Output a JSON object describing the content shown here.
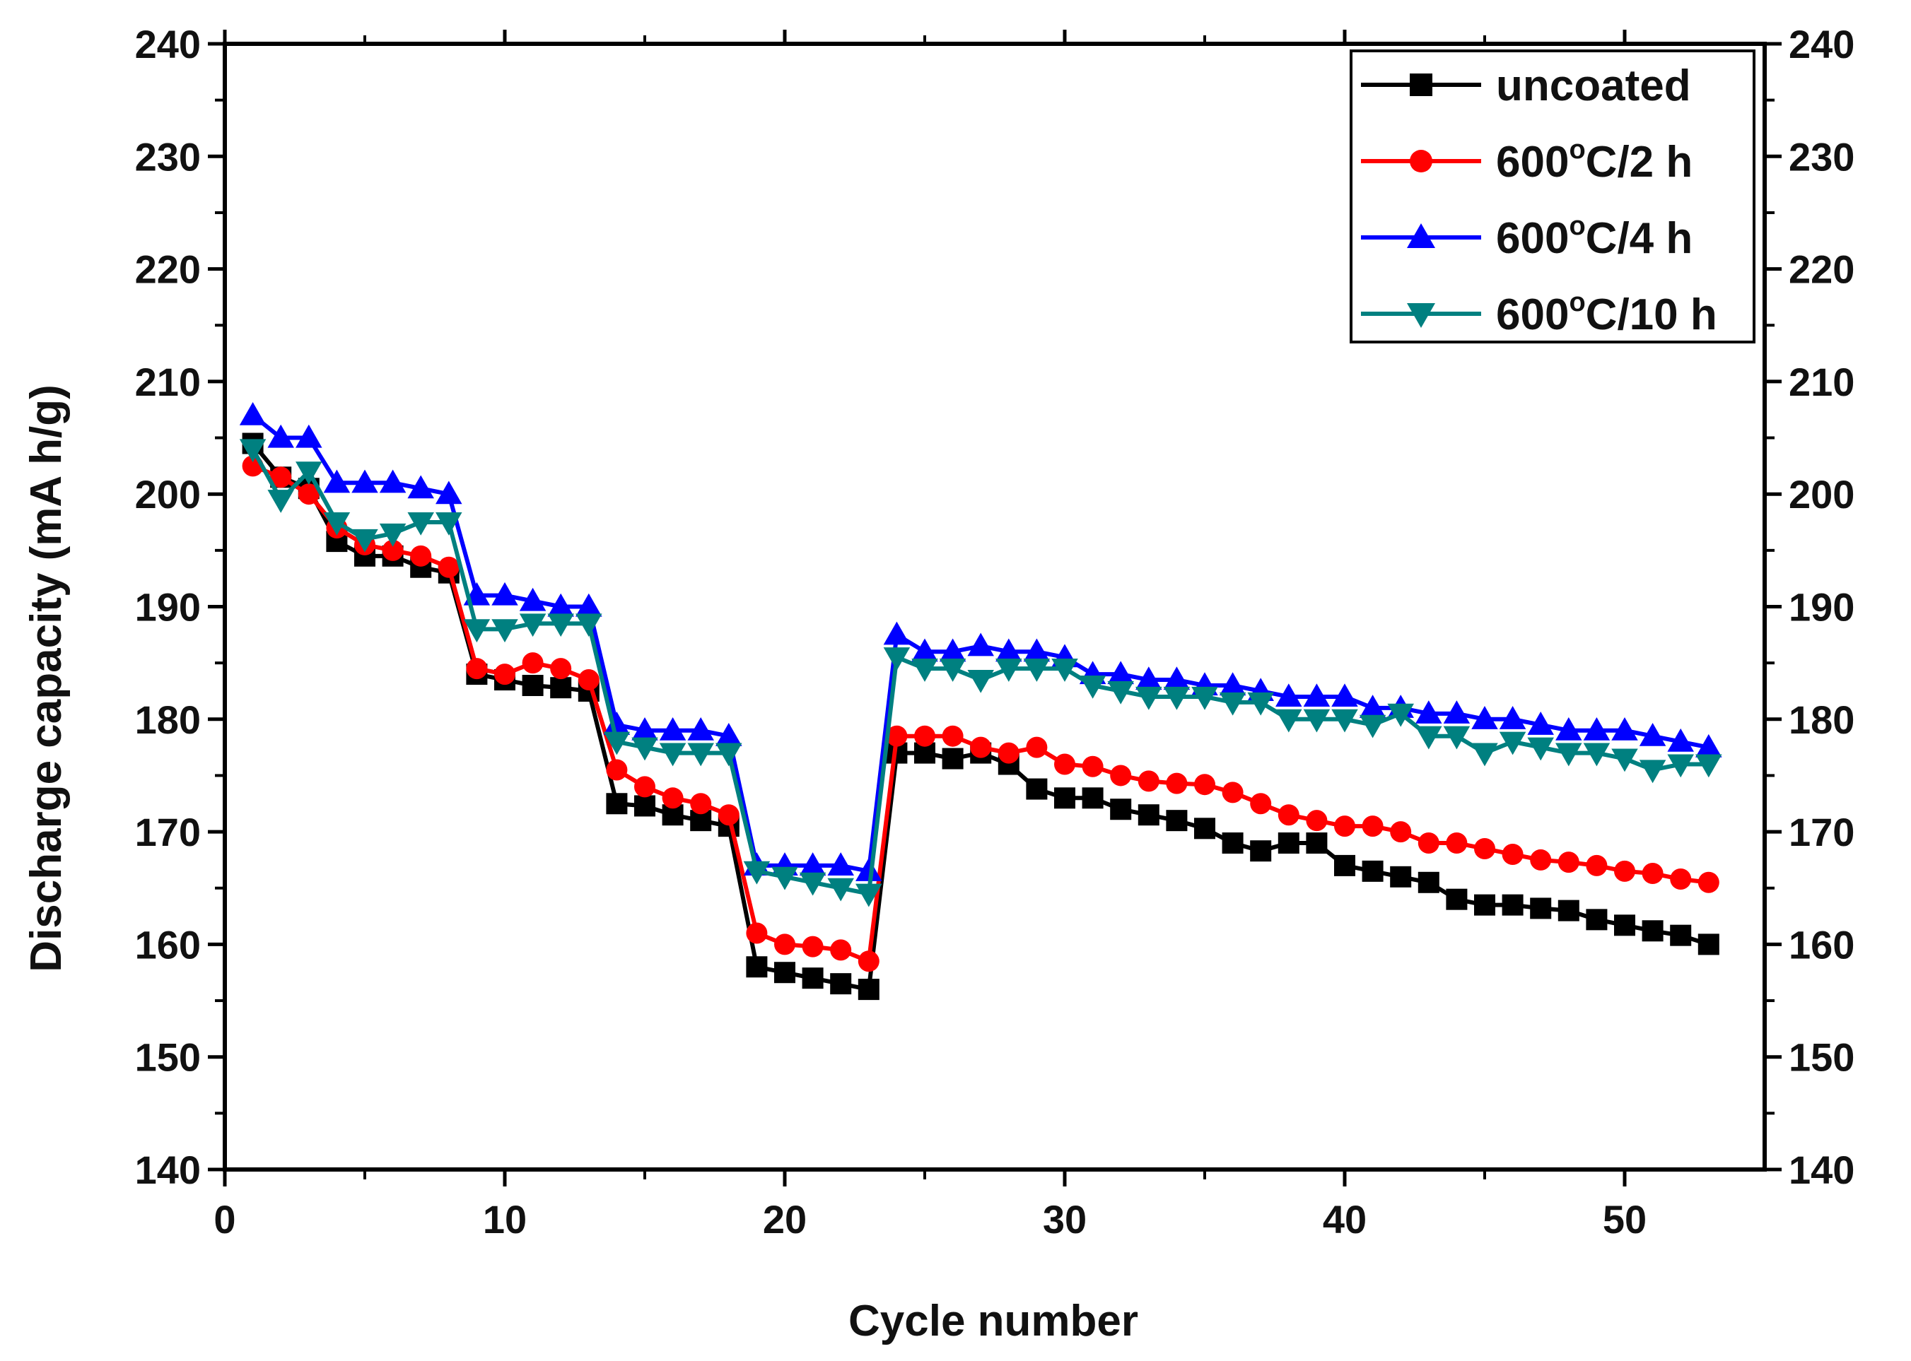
{
  "chart_data": {
    "type": "line",
    "title": "",
    "xlabel": "Cycle number",
    "ylabel": "Discharge capacity (mA h/g)",
    "xlim": [
      0,
      55
    ],
    "ylim": [
      140,
      240
    ],
    "x_ticks": [
      "0",
      "10",
      "20",
      "30",
      "40",
      "50"
    ],
    "y_ticks": [
      "140",
      "150",
      "160",
      "170",
      "180",
      "190",
      "200",
      "210",
      "220",
      "230",
      "240"
    ],
    "right_axis_mirror": true,
    "legend_position": "top-right",
    "x": [
      1,
      2,
      3,
      4,
      5,
      6,
      7,
      8,
      9,
      10,
      11,
      12,
      13,
      14,
      15,
      16,
      17,
      18,
      19,
      20,
      21,
      22,
      23,
      24,
      25,
      26,
      27,
      28,
      29,
      30,
      31,
      32,
      33,
      34,
      35,
      36,
      37,
      38,
      39,
      40,
      41,
      42,
      43,
      44,
      45,
      46,
      47,
      48,
      49,
      50,
      51,
      52,
      53
    ],
    "series": [
      {
        "name": "uncoated",
        "name_parts": {
          "main": "uncoated",
          "sup": "",
          "tail": ""
        },
        "color": "#000000",
        "marker": "square",
        "values": [
          204.5,
          201.5,
          200.5,
          195.8,
          194.5,
          194.5,
          193.5,
          193.0,
          184.0,
          183.5,
          183.0,
          182.8,
          182.5,
          172.5,
          172.3,
          171.5,
          171.0,
          170.5,
          158.0,
          157.5,
          157.0,
          156.5,
          156.0,
          177.0,
          177.0,
          176.5,
          177.0,
          176.0,
          173.8,
          173.0,
          173.0,
          172.0,
          171.5,
          171.0,
          170.3,
          169.0,
          168.3,
          169.0,
          169.0,
          167.0,
          166.5,
          166.0,
          165.5,
          164.0,
          163.5,
          163.5,
          163.2,
          163.0,
          162.2,
          161.7,
          161.2,
          160.8,
          160.0
        ]
      },
      {
        "name": "600°C/2 h",
        "name_parts": {
          "main": "600",
          "sup": "o",
          "tail": "C/2 h"
        },
        "color": "#ff0000",
        "marker": "circle",
        "values": [
          202.5,
          201.5,
          200.0,
          197.0,
          195.5,
          195.0,
          194.5,
          193.5,
          184.5,
          184.0,
          185.0,
          184.5,
          183.5,
          175.5,
          174.0,
          173.0,
          172.5,
          171.5,
          161.0,
          160.0,
          159.8,
          159.5,
          158.5,
          178.5,
          178.5,
          178.5,
          177.5,
          177.0,
          177.5,
          176.0,
          175.8,
          175.0,
          174.5,
          174.3,
          174.2,
          173.5,
          172.5,
          171.5,
          171.0,
          170.5,
          170.5,
          170.0,
          169.0,
          169.0,
          168.5,
          168.0,
          167.5,
          167.3,
          167.0,
          166.5,
          166.3,
          165.8,
          165.5
        ]
      },
      {
        "name": "600°C/4 h",
        "name_parts": {
          "main": "600",
          "sup": "o",
          "tail": "C/4 h"
        },
        "color": "#0000ff",
        "marker": "triangle-up",
        "values": [
          207.0,
          205.0,
          205.0,
          201.0,
          201.0,
          201.0,
          200.5,
          200.0,
          191.0,
          191.0,
          190.5,
          190.0,
          190.0,
          179.5,
          179.0,
          179.0,
          179.0,
          178.5,
          167.0,
          167.0,
          167.0,
          167.0,
          166.5,
          187.5,
          186.0,
          186.0,
          186.5,
          186.0,
          186.0,
          185.5,
          184.0,
          184.0,
          183.5,
          183.5,
          183.0,
          183.0,
          182.5,
          182.0,
          182.0,
          182.0,
          181.0,
          181.0,
          180.5,
          180.5,
          180.0,
          180.0,
          179.5,
          179.0,
          179.0,
          179.0,
          178.5,
          178.0,
          177.5
        ]
      },
      {
        "name": "600°C/10 h",
        "name_parts": {
          "main": "600",
          "sup": "o",
          "tail": "C/10 h"
        },
        "color": "#008080",
        "marker": "triangle-down",
        "values": [
          204.0,
          199.5,
          202.0,
          197.5,
          196.0,
          196.5,
          197.5,
          197.5,
          188.0,
          188.0,
          188.5,
          188.5,
          188.5,
          178.0,
          177.5,
          177.0,
          177.0,
          177.0,
          166.5,
          166.0,
          165.5,
          165.0,
          164.5,
          185.5,
          184.5,
          184.5,
          183.5,
          184.5,
          184.5,
          184.5,
          183.0,
          182.5,
          182.0,
          182.0,
          182.0,
          181.5,
          181.5,
          180.0,
          180.0,
          180.0,
          179.5,
          180.5,
          178.5,
          178.5,
          177.0,
          178.0,
          177.5,
          177.0,
          177.0,
          176.5,
          175.5,
          176.0,
          176.0
        ]
      }
    ]
  }
}
